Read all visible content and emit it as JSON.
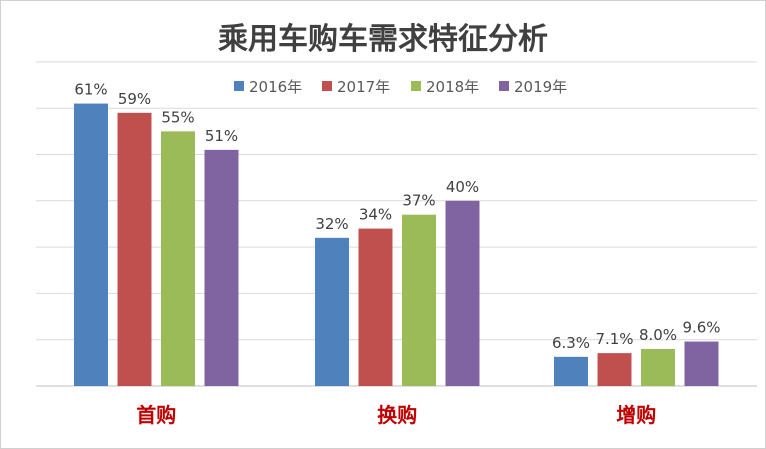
{
  "chart_data": {
    "type": "bar",
    "title": "乘用车购车需求特征分析",
    "categories": [
      "首购",
      "换购",
      "增购"
    ],
    "category_label_color": "#c00000",
    "ylim": [
      0,
      0.6
    ],
    "grid": true,
    "legend_position": "top",
    "series": [
      {
        "name": "2016年",
        "color": "#4f81bd",
        "values": [
          0.61,
          0.32,
          0.063
        ],
        "labels": [
          "61%",
          "32%",
          "6.3%"
        ]
      },
      {
        "name": "2017年",
        "color": "#c0504d",
        "values": [
          0.59,
          0.34,
          0.071
        ],
        "labels": [
          "59%",
          "34%",
          "7.1%"
        ]
      },
      {
        "name": "2018年",
        "color": "#9bbb59",
        "values": [
          0.55,
          0.37,
          0.08
        ],
        "labels": [
          "55%",
          "37%",
          "8.0%"
        ]
      },
      {
        "name": "2019年",
        "color": "#8064a2",
        "values": [
          0.51,
          0.4,
          0.096
        ],
        "labels": [
          "51%",
          "40%",
          "9.6%"
        ]
      }
    ]
  }
}
